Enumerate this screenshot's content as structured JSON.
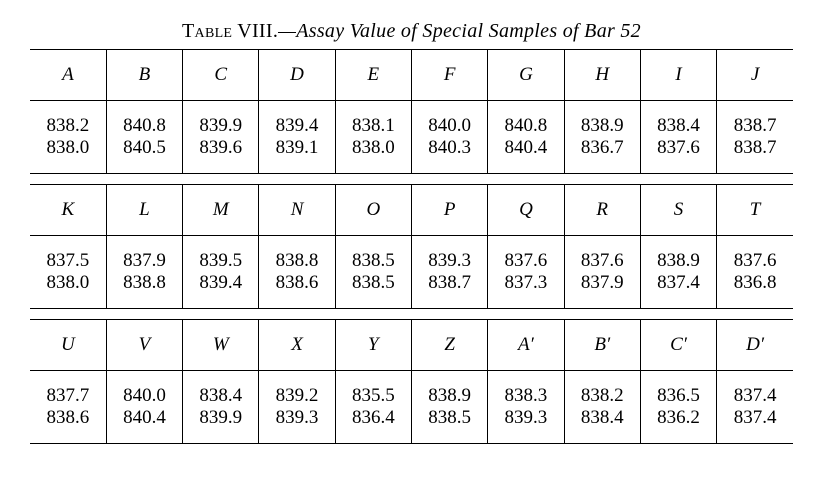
{
  "title_prefix": "Table VIII.",
  "title_rest": "—Assay Value of Special Samples of Bar 52",
  "table": {
    "background_color": "#ffffff",
    "text_color": "#000000",
    "border_color": "#000000",
    "font_family": "Times New Roman",
    "header_font_style": "italic",
    "cell_fontsize": 19,
    "title_fontsize": 20,
    "column_count": 10,
    "sections": [
      {
        "headers": [
          "A",
          "B",
          "C",
          "D",
          "E",
          "F",
          "G",
          "H",
          "I",
          "J"
        ],
        "rows": [
          [
            "838.2",
            "840.8",
            "839.9",
            "839.4",
            "838.1",
            "840.0",
            "840.8",
            "838.9",
            "838.4",
            "838.7"
          ],
          [
            "838.0",
            "840.5",
            "839.6",
            "839.1",
            "838.0",
            "840.3",
            "840.4",
            "836.7",
            "837.6",
            "838.7"
          ]
        ]
      },
      {
        "headers": [
          "K",
          "L",
          "M",
          "N",
          "O",
          "P",
          "Q",
          "R",
          "S",
          "T"
        ],
        "rows": [
          [
            "837.5",
            "837.9",
            "839.5",
            "838.8",
            "838.5",
            "839.3",
            "837.6",
            "837.6",
            "838.9",
            "837.6"
          ],
          [
            "838.0",
            "838.8",
            "839.4",
            "838.6",
            "838.5",
            "838.7",
            "837.3",
            "837.9",
            "837.4",
            "836.8"
          ]
        ]
      },
      {
        "headers": [
          "U",
          "V",
          "W",
          "X",
          "Y",
          "Z",
          "A′",
          "B′",
          "C′",
          "D′"
        ],
        "rows": [
          [
            "837.7",
            "840.0",
            "838.4",
            "839.2",
            "835.5",
            "838.9",
            "838.3",
            "838.2",
            "836.5",
            "837.4"
          ],
          [
            "838.6",
            "840.4",
            "839.9",
            "839.3",
            "836.4",
            "838.5",
            "839.3",
            "838.4",
            "836.2",
            "837.4"
          ]
        ]
      }
    ]
  }
}
